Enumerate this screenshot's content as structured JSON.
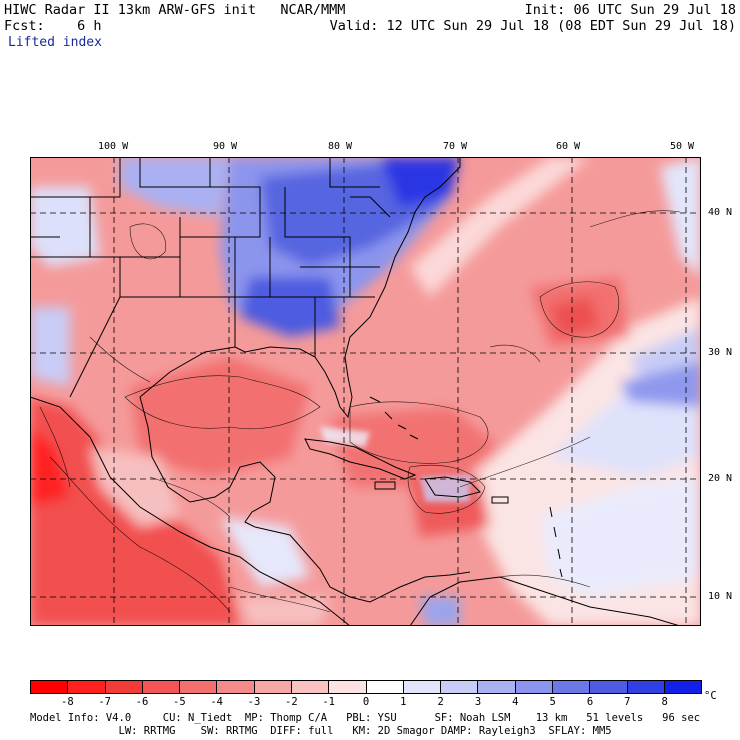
{
  "header": {
    "title": "HIWC Radar II 13km ARW-GFS init",
    "agency": "NCAR/MMM",
    "init": "Init: 06 UTC Sun 29 Jul 18",
    "fcst_label": "Fcst:",
    "fcst_value": "6 h",
    "valid": "Valid: 12 UTC Sun 29 Jul 18 (08 EDT Sun 29 Jul 18)",
    "field": "Lifted index"
  },
  "map": {
    "lon_labels": [
      "100 W",
      "90 W",
      "80 W",
      "70 W",
      "60 W",
      "50 W"
    ],
    "lat_labels": [
      "40 N",
      "30 N",
      "20 N",
      "10 N"
    ],
    "colors": {
      "strong_red": "#ff0000",
      "red": "#f04040",
      "light_red": "#f79a9a",
      "pale_red": "#fcd8d8",
      "pale_blue": "#dde0fa",
      "light_blue": "#9aa4ee",
      "blue": "#4b5ce0",
      "strong_blue": "#1a20e8"
    }
  },
  "colorbar": {
    "labels": [
      "-8",
      "-7",
      "-6",
      "-5",
      "-4",
      "-3",
      "-2",
      "-1",
      "0",
      "1",
      "2",
      "3",
      "4",
      "5",
      "6",
      "7",
      "8"
    ],
    "unit": "°C",
    "colors": [
      "#ff0000",
      "#ff2020",
      "#f53a3a",
      "#f45656",
      "#f37070",
      "#f58a8a",
      "#f7a6a6",
      "#fac2c2",
      "#fde2e2",
      "#ffffff",
      "#e2e4fb",
      "#c8ccf7",
      "#aab1f2",
      "#8c95ed",
      "#6d78e7",
      "#4e5be2",
      "#3040e4",
      "#1420ea"
    ]
  },
  "footer": {
    "line1": "Model Info: V4.0     CU: N_Tiedt  MP: Thomp C/A   PBL: YSU      SF: Noah LSM    13 km   51 levels   96 sec",
    "line2": "              LW: RRTMG    SW: RRTMG  DIFF: full   KM: 2D Smagor DAMP: Rayleigh3  SFLAY: MM5"
  }
}
